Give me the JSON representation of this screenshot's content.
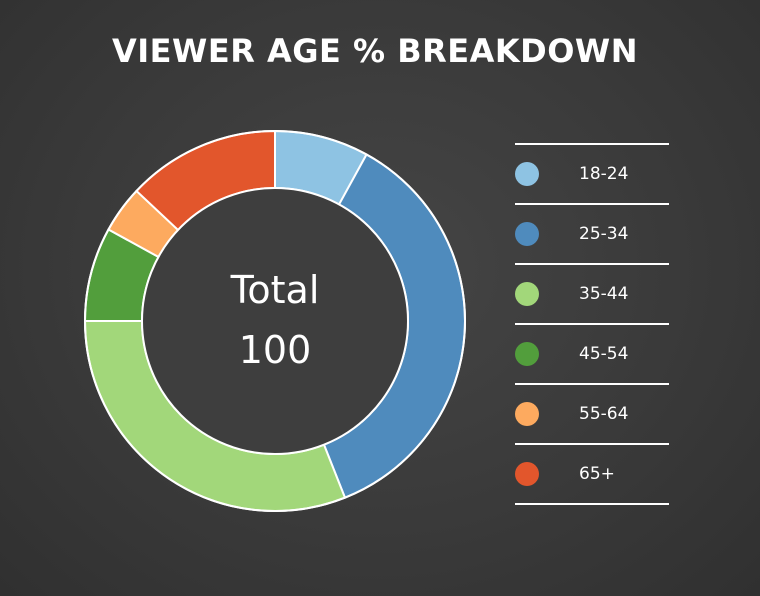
{
  "chart_data": {
    "type": "pie",
    "title": "VIEWER AGE % BREAKDOWN",
    "center_label": {
      "line1": "Total",
      "line2": "100"
    },
    "categories": [
      "18-24",
      "25-34",
      "35-44",
      "45-54",
      "55-64",
      "65+"
    ],
    "values": [
      8,
      36,
      31,
      8,
      4,
      13
    ],
    "colors": [
      "#8ec3e3",
      "#4f8bbd",
      "#a2d77a",
      "#529e3c",
      "#fdaa5f",
      "#e2562c"
    ],
    "legend_position": "right"
  }
}
